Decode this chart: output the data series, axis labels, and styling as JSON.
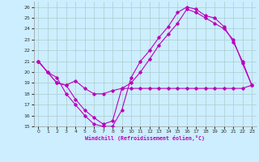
{
  "xlabel": "Windchill (Refroidissement éolien,°C)",
  "xlim": [
    -0.5,
    23.5
  ],
  "ylim": [
    15,
    26.5
  ],
  "xticks": [
    0,
    1,
    2,
    3,
    4,
    5,
    6,
    7,
    8,
    9,
    10,
    11,
    12,
    13,
    14,
    15,
    16,
    17,
    18,
    19,
    20,
    21,
    22,
    23
  ],
  "yticks": [
    15,
    16,
    17,
    18,
    19,
    20,
    21,
    22,
    23,
    24,
    25,
    26
  ],
  "bg_color": "#cceeff",
  "line_color": "#bb00bb",
  "grid_color": "#aacccc",
  "line1_x": [
    0,
    1,
    2,
    3,
    4,
    5,
    6,
    7,
    8,
    9,
    10,
    11,
    12,
    13,
    14,
    15,
    16,
    17,
    18,
    19,
    20,
    21,
    22,
    23
  ],
  "line1_y": [
    21,
    20,
    19,
    18.8,
    19.2,
    18.5,
    18,
    18,
    18.3,
    18.5,
    18.5,
    18.5,
    18.5,
    18.5,
    18.5,
    18.5,
    18.5,
    18.5,
    18.5,
    18.5,
    18.5,
    18.5,
    18.5,
    18.8
  ],
  "line2_x": [
    0,
    1,
    2,
    3,
    4,
    5,
    6,
    7,
    8,
    9,
    10,
    11,
    12,
    13,
    14,
    15,
    16,
    17,
    18,
    19,
    20,
    21,
    22,
    23
  ],
  "line2_y": [
    21,
    20,
    19.5,
    18,
    17,
    16,
    15.2,
    15,
    15,
    16.5,
    19.5,
    21,
    22,
    23.2,
    24.2,
    25.5,
    26,
    25.8,
    25.2,
    25,
    24.2,
    22.8,
    21,
    18.8
  ],
  "line3_x": [
    0,
    2,
    3,
    4,
    5,
    6,
    7,
    8,
    9,
    10,
    11,
    12,
    13,
    14,
    15,
    16,
    17,
    18,
    19,
    20,
    21,
    22,
    23
  ],
  "line3_y": [
    21,
    19,
    18.8,
    17.5,
    16.5,
    15.8,
    15.2,
    15.5,
    18.5,
    19,
    20,
    21.2,
    22.5,
    23.5,
    24.5,
    25.8,
    25.5,
    25,
    24.5,
    24,
    23,
    20.8,
    18.8
  ]
}
